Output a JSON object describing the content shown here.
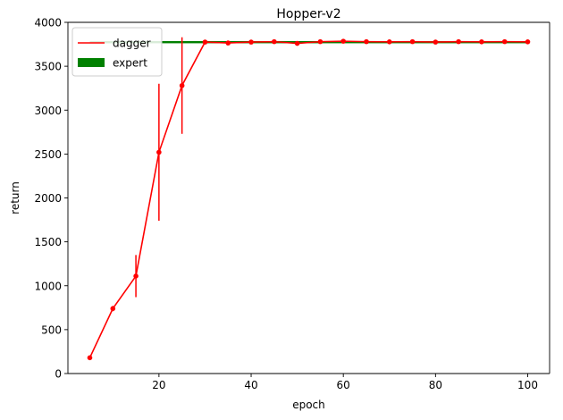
{
  "chart_data": {
    "type": "line",
    "title": "Hopper-v2",
    "xlabel": "epoch",
    "ylabel": "return",
    "xlim": [
      0.25,
      104.75
    ],
    "ylim": [
      0,
      4000
    ],
    "x_ticks": [
      20,
      40,
      60,
      80,
      100
    ],
    "y_ticks": [
      0,
      500,
      1000,
      1500,
      2000,
      2500,
      3000,
      3500,
      4000
    ],
    "grid": false,
    "legend_position": "upper-left",
    "series": [
      {
        "name": "dagger",
        "color": "#ff0000",
        "x": [
          5,
          10,
          15,
          20,
          25,
          30,
          35,
          40,
          45,
          50,
          55,
          60,
          65,
          70,
          75,
          80,
          85,
          90,
          95,
          100
        ],
        "y": [
          180,
          740,
          1110,
          2520,
          3280,
          3775,
          3765,
          3775,
          3780,
          3760,
          3780,
          3785,
          3780,
          3778,
          3780,
          3775,
          3780,
          3778,
          3780,
          3778
        ],
        "yerr": [
          10,
          30,
          240,
          780,
          550,
          8,
          10,
          8,
          12,
          10,
          8,
          10,
          8,
          8,
          8,
          8,
          8,
          8,
          8,
          8
        ]
      },
      {
        "name": "expert",
        "color": "#008000",
        "x": [
          5,
          100
        ],
        "y": [
          3778,
          3778
        ],
        "yerr_band": [
          4,
          4
        ]
      }
    ]
  }
}
